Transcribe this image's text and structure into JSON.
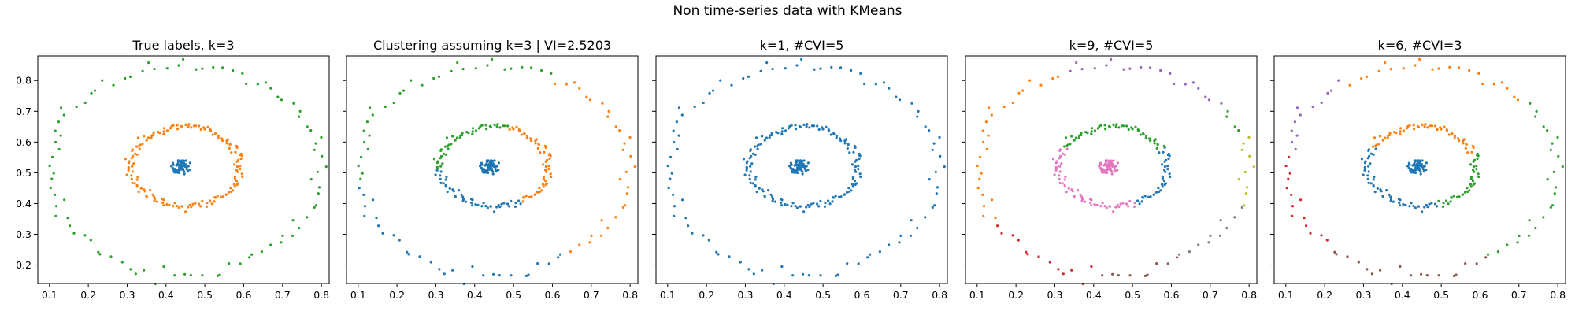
{
  "title": "Non time-series data with KMeans",
  "colors": {
    "c0": "#1f77b4",
    "c1": "#ff7f0e",
    "c2": "#2ca02c",
    "c3": "#d62728",
    "c4": "#9467bd",
    "c5": "#8c564b",
    "c6": "#e377c2",
    "c7": "#7f7f7f",
    "c8": "#bcbd22"
  },
  "axes": {
    "x_ticks": [
      "0.1",
      "0.2",
      "0.3",
      "0.4",
      "0.5",
      "0.6",
      "0.7",
      "0.8"
    ],
    "y_ticks": [
      "0.2",
      "0.3",
      "0.4",
      "0.5",
      "0.6",
      "0.7",
      "0.8"
    ],
    "xlim": [
      0.07,
      0.82
    ],
    "ylim": [
      0.14,
      0.88
    ],
    "sharey": true
  },
  "chart_data": [
    {
      "type": "scatter",
      "title": "True labels, k=3",
      "data": {
        "center": {
          "cx": 0.44,
          "cy": 0.52,
          "r": 0.025
        },
        "ring": {
          "cx": 0.45,
          "cy": 0.52,
          "rx": 0.14,
          "ry": 0.13
        },
        "outer": {
          "cx": 0.45,
          "cy": 0.51,
          "rx": 0.35,
          "ry": 0.34
        }
      },
      "color_rule": {
        "kind": "group",
        "center": "c0",
        "ring": "c1",
        "outer": "c2"
      }
    },
    {
      "type": "scatter",
      "title": "Clustering assuming k=3 | VI=2.5203",
      "color_rule": {
        "kind": "kmeans3",
        "centroids": [
          [
            0.4,
            0.33,
            "c0"
          ],
          [
            0.62,
            0.5,
            "c1"
          ],
          [
            0.3,
            0.72,
            "c2"
          ]
        ]
      }
    },
    {
      "type": "scatter",
      "title": "k=1, #CVI=5",
      "color_rule": {
        "kind": "single",
        "color": "c0"
      }
    },
    {
      "type": "scatter",
      "title": "k=9, #CVI=5",
      "color_rule": {
        "kind": "kmeans9"
      }
    },
    {
      "type": "scatter",
      "title": "k=6, #CVI=3",
      "color_rule": {
        "kind": "kmeans6"
      }
    }
  ]
}
